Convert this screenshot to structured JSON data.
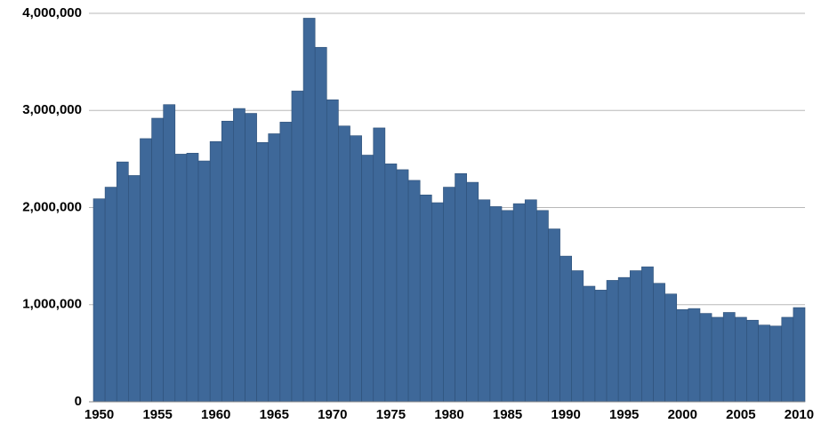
{
  "chart_data": {
    "type": "bar",
    "categories": [
      "1950",
      null,
      null,
      null,
      null,
      "1955",
      null,
      null,
      null,
      null,
      "1960",
      null,
      null,
      null,
      null,
      "1965",
      null,
      null,
      null,
      null,
      "1970",
      null,
      null,
      null,
      null,
      "1975",
      null,
      null,
      null,
      null,
      "1980",
      null,
      null,
      null,
      null,
      "1985",
      null,
      null,
      null,
      null,
      "1990",
      null,
      null,
      null,
      null,
      "1995",
      null,
      null,
      null,
      null,
      "2000",
      null,
      null,
      null,
      null,
      "2005",
      null,
      null,
      null,
      null,
      "2010"
    ],
    "values": [
      2090000,
      2210000,
      2470000,
      2330000,
      2710000,
      2920000,
      3060000,
      2550000,
      2560000,
      2480000,
      2680000,
      2890000,
      3020000,
      2970000,
      2670000,
      2760000,
      2880000,
      3200000,
      3950000,
      3650000,
      3110000,
      2840000,
      2740000,
      2540000,
      2820000,
      2450000,
      2390000,
      2280000,
      2130000,
      2050000,
      2210000,
      2350000,
      2260000,
      2080000,
      2010000,
      1970000,
      2040000,
      2080000,
      1970000,
      1780000,
      1500000,
      1350000,
      1190000,
      1150000,
      1250000,
      1280000,
      1350000,
      1390000,
      1220000,
      1110000,
      950000,
      960000,
      910000,
      870000,
      920000,
      870000,
      840000,
      790000,
      780000,
      870000,
      970000
    ],
    "color": "#3e6899",
    "ylim": [
      0,
      4000000
    ],
    "yticks": [
      0,
      {
        "value": 1000000,
        "label": "1,000,000"
      },
      {
        "value": 2000000,
        "label": "2,000,000"
      },
      {
        "value": 3000000,
        "label": "3,000,000"
      },
      {
        "value": 4000000,
        "label": "4,000,000"
      }
    ],
    "grid": true
  }
}
